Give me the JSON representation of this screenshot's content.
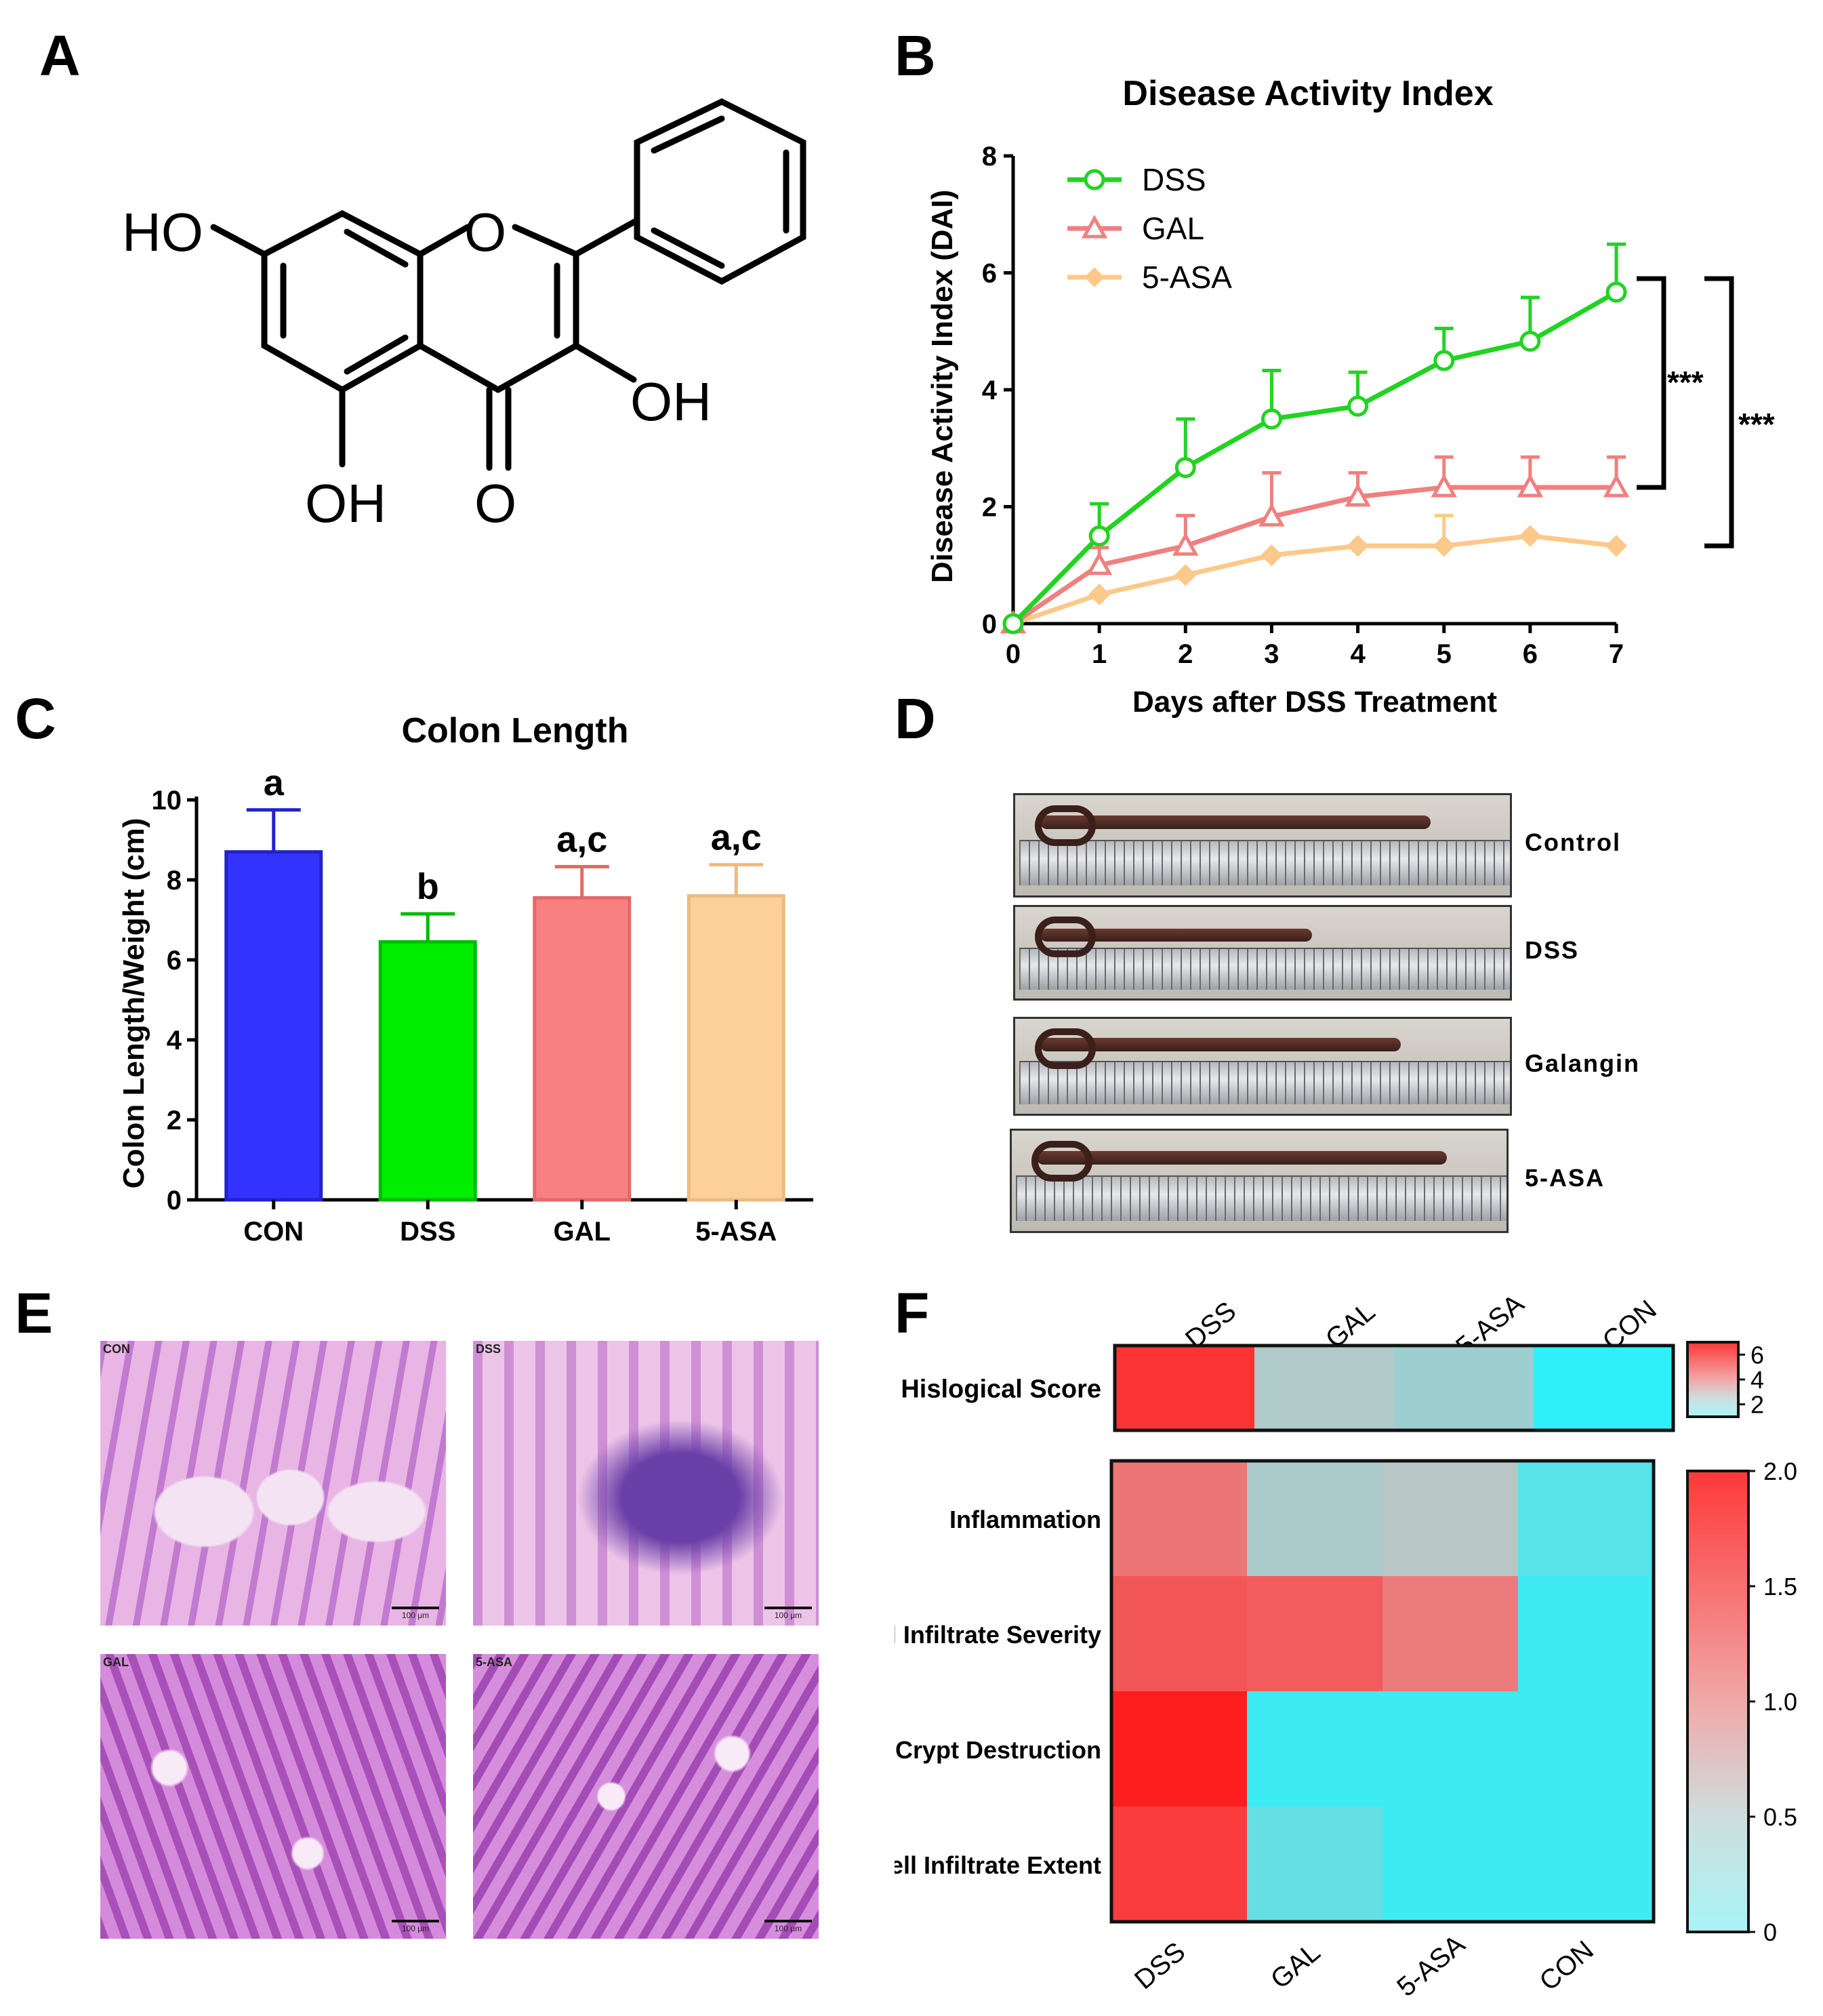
{
  "panels": {
    "A": "A",
    "B": "B",
    "C": "C",
    "D": "D",
    "E": "E",
    "F": "F"
  },
  "structure": {
    "name": "Galangin",
    "labels": {
      "ho7": "HO",
      "oh3": "OH",
      "oh5": "OH",
      "o4": "O",
      "o1": "O"
    }
  },
  "chart_data": [
    {
      "id": "B",
      "type": "line",
      "title": "Disease Activity Index",
      "xlabel": "Days after DSS Treatment",
      "ylabel": "Disease Activity Index (DAI)",
      "x": [
        0,
        1,
        2,
        3,
        4,
        5,
        6,
        7
      ],
      "xlim": [
        0,
        7
      ],
      "ylim": [
        0,
        8
      ],
      "yticks": [
        0,
        2,
        4,
        6,
        8
      ],
      "series": [
        {
          "name": "DSS",
          "color": "#22d322",
          "marker": "circle",
          "values": [
            0,
            1.5,
            2.67,
            3.5,
            3.72,
            4.5,
            4.83,
            5.67
          ],
          "errors": [
            0,
            0.55,
            0.83,
            0.83,
            0.58,
            0.55,
            0.75,
            0.82
          ]
        },
        {
          "name": "GAL",
          "color": "#f08080",
          "marker": "triangle",
          "values": [
            0,
            1.0,
            1.33,
            1.83,
            2.17,
            2.33,
            2.33,
            2.33
          ],
          "errors": [
            0,
            0.3,
            0.52,
            0.75,
            0.41,
            0.52,
            0.52,
            0.52
          ]
        },
        {
          "name": "5-ASA",
          "color": "#fcc98a",
          "marker": "diamond",
          "values": [
            0,
            0.5,
            0.83,
            1.17,
            1.33,
            1.33,
            1.5,
            1.33
          ],
          "errors": [
            0,
            0,
            0,
            0,
            0,
            0.52,
            0,
            0
          ]
        }
      ],
      "significance": [
        "***",
        "***"
      ]
    },
    {
      "id": "C",
      "type": "bar",
      "title": "Colon Length",
      "xlabel": "",
      "ylabel": "Colon Length/Weight (cm)",
      "categories": [
        "CON",
        "DSS",
        "GAL",
        "5-ASA"
      ],
      "values": [
        8.7,
        6.45,
        7.55,
        7.6
      ],
      "errors": [
        1.05,
        0.7,
        0.78,
        0.78
      ],
      "letters": [
        "a",
        "b",
        "a,c",
        "a,c"
      ],
      "colors": [
        "#3333ff",
        "#00ee00",
        "#f88080",
        "#fdd09a"
      ],
      "edge_colors": [
        "#2222cc",
        "#00bb00",
        "#e06a6a",
        "#ecbb80"
      ],
      "ylim": [
        0,
        10
      ],
      "yticks": [
        0,
        2,
        4,
        6,
        8,
        10
      ]
    },
    {
      "id": "F",
      "type": "heatmap",
      "columns": [
        "DSS",
        "GAL",
        "5-ASA",
        "CON"
      ],
      "top": {
        "rows": [
          "Hislogical Score"
        ],
        "values": [
          [
            6.5,
            2.4,
            2.2,
            0.3
          ]
        ],
        "colorbar_ticks": [
          2,
          4,
          6
        ],
        "range": [
          1,
          7
        ]
      },
      "bottom": {
        "rows": [
          "Inflammation",
          "Cell Infiltrate Severity",
          "Crypt Destruction",
          "Cell Infiltrate Extent"
        ],
        "values": [
          [
            1.3,
            0.45,
            0.5,
            0.15
          ],
          [
            1.55,
            1.5,
            1.25,
            0.05
          ],
          [
            2.0,
            0.05,
            0.05,
            0.05
          ],
          [
            1.75,
            0.2,
            0.05,
            0.05
          ]
        ],
        "colorbar_ticks": [
          "0",
          "0.5",
          "1.0",
          "1.5",
          "2.0"
        ],
        "range": [
          0,
          2
        ]
      }
    }
  ],
  "photos_D": [
    "Control",
    "DSS",
    "Galangin",
    "5-ASA"
  ],
  "histology_E": [
    {
      "label": "CON",
      "scale": "100 μm"
    },
    {
      "label": "DSS",
      "scale": "100 μm"
    },
    {
      "label": "GAL",
      "scale": "100 μm"
    },
    {
      "label": "5-ASA",
      "scale": "100 μm"
    }
  ]
}
